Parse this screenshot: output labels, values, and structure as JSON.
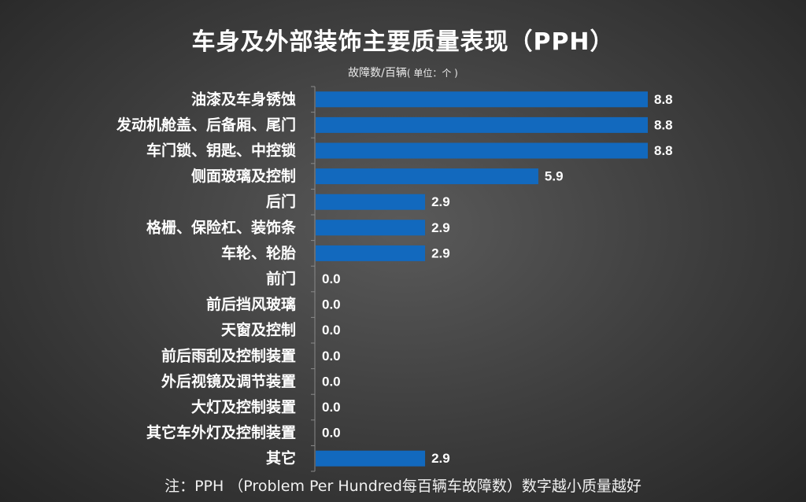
{
  "chart_data": {
    "type": "bar",
    "orientation": "horizontal",
    "title": "车身及外部装饰主要质量表现（PPH）",
    "subtitle": "故障数/百辆",
    "unit_note": "( 单位：个 )",
    "categories": [
      "油漆及车身锈蚀",
      "发动机舱盖、后备厢、尾门",
      "车门锁、钥匙、中控锁",
      "侧面玻璃及控制",
      "后门",
      "格栅、保险杠、装饰条",
      "车轮、轮胎",
      "前门",
      "前后挡风玻璃",
      "天窗及控制",
      "前后雨刮及控制装置",
      "外后视镜及调节装置",
      "大灯及控制装置",
      "其它车外灯及控制装置",
      "其它"
    ],
    "values": [
      8.8,
      8.8,
      8.8,
      5.9,
      2.9,
      2.9,
      2.9,
      0.0,
      0.0,
      0.0,
      0.0,
      0.0,
      0.0,
      0.0,
      2.9
    ],
    "value_labels": [
      "8.8",
      "8.8",
      "8.8",
      "5.9",
      "2.9",
      "2.9",
      "2.9",
      "0.0",
      "0.0",
      "0.0",
      "0.0",
      "0.0",
      "0.0",
      "0.0",
      "2.9"
    ],
    "xlim": [
      0,
      8.8
    ],
    "bar_color": "#1269be",
    "axis_color": "#8a8a8a",
    "grid": false,
    "legend": "none"
  },
  "footnote": "注：PPH （Problem Per Hundred每百辆车故障数）数字越小质量越好"
}
